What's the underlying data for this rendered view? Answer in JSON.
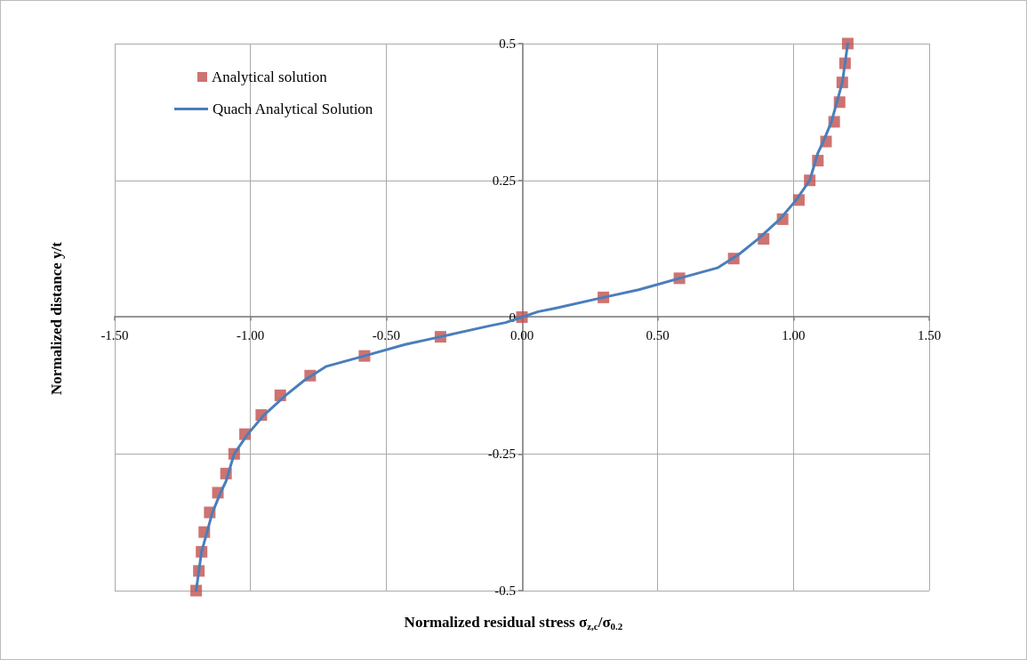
{
  "chart_data": {
    "type": "scatter",
    "xlabel": "Normalized residual stress σ$_{z,c}$/σ$_{0.2}$",
    "ylabel": "Normalized distance y/t",
    "xlim": [
      -1.5,
      1.5
    ],
    "xticks": [
      {
        "value": -1.5,
        "label": "-1.50"
      },
      {
        "value": -1,
        "label": "-1.00"
      },
      {
        "value": -0.5,
        "label": "-0.50"
      },
      {
        "value": 0,
        "label": "0.00"
      },
      {
        "value": 0.5,
        "label": "0.50"
      },
      {
        "value": 1,
        "label": "1.00"
      },
      {
        "value": 1.5,
        "label": "1.50"
      }
    ],
    "ylim": [
      -0.5,
      0.5
    ],
    "yticks": [
      -0.5,
      -0.25,
      0,
      0.25,
      0.5
    ],
    "grid": true,
    "legend": "top left",
    "series": [
      {
        "name": "Analytical solution",
        "marker": "square",
        "color": "#c0504d",
        "x": [
          -1.2,
          -1.19,
          -1.18,
          -1.17,
          -1.15,
          -1.12,
          -1.09,
          -1.06,
          -1.02,
          -0.96,
          -0.89,
          -0.78,
          -0.58,
          -0.3,
          0,
          0.3,
          0.58,
          0.78,
          0.89,
          0.96,
          1.02,
          1.06,
          1.09,
          1.12,
          1.15,
          1.17,
          1.18,
          1.19,
          1.2
        ],
        "values": [
          -0.5,
          -0.464,
          -0.429,
          -0.393,
          -0.357,
          -0.321,
          -0.286,
          -0.25,
          -0.214,
          -0.179,
          -0.143,
          -0.107,
          -0.071,
          -0.036,
          0,
          0.036,
          0.071,
          0.107,
          0.143,
          0.179,
          0.214,
          0.25,
          0.286,
          0.321,
          0.357,
          0.393,
          0.429,
          0.464,
          0.5
        ]
      },
      {
        "name": "Quach Analytical Solution",
        "type": "line",
        "marker": "none",
        "line_style": "solid",
        "color": "#4a7ebb",
        "x": [
          -1.2,
          -1.19,
          -1.18,
          -1.16,
          -1.14,
          -1.11,
          -1.09,
          -1.06,
          -1.01,
          -0.95,
          -0.87,
          -0.8,
          -0.72,
          -0.58,
          -0.43,
          -0.3,
          -0.12,
          -0.06,
          0,
          0.06,
          0.12,
          0.3,
          0.43,
          0.58,
          0.72,
          0.8,
          0.87,
          0.95,
          1.01,
          1.06,
          1.09,
          1.11,
          1.14,
          1.16,
          1.18,
          1.19,
          1.2
        ],
        "values": [
          -0.5,
          -0.464,
          -0.429,
          -0.393,
          -0.357,
          -0.321,
          -0.3,
          -0.25,
          -0.214,
          -0.179,
          -0.143,
          -0.115,
          -0.09,
          -0.071,
          -0.05,
          -0.036,
          -0.016,
          -0.01,
          0,
          0.01,
          0.016,
          0.036,
          0.05,
          0.071,
          0.09,
          0.115,
          0.143,
          0.179,
          0.214,
          0.25,
          0.3,
          0.321,
          0.357,
          0.393,
          0.429,
          0.464,
          0.5
        ]
      }
    ]
  }
}
